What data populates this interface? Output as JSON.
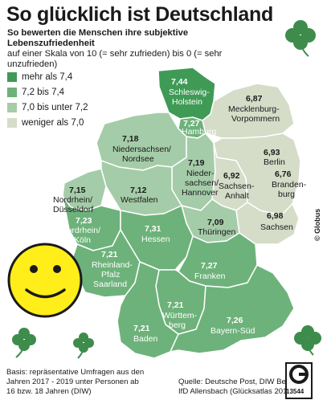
{
  "title": "So glücklich ist Deutschland",
  "subtitle_line1": "So bewerten die Menschen ihre subjektive Lebenszufriedenheit",
  "subtitle_line2": "auf einer Skala von 10 (= sehr zufrieden) bis 0 (= sehr unzufrieden)",
  "legend": [
    {
      "label": "mehr als 7,4",
      "color": "#3f9a55"
    },
    {
      "label": "7,2 bis 7,4",
      "color": "#6db27a"
    },
    {
      "label": "7,0 bis unter 7,2",
      "color": "#a5cca8"
    },
    {
      "label": "weniger als 7,0",
      "color": "#d5dcc8"
    }
  ],
  "regions": [
    {
      "value": "7,44",
      "name1": "Schleswig-",
      "name2": "Holstein",
      "category": 0
    },
    {
      "value": "7,27",
      "name1": "Hamburg",
      "name2": "",
      "category": 1
    },
    {
      "value": "6,87",
      "name1": "Mecklenburg-",
      "name2": "Vorpommern",
      "category": 3
    },
    {
      "value": "7,18",
      "name1": "Niedersachsen/",
      "name2": "Nordsee",
      "category": 2
    },
    {
      "value": "7,19",
      "name1": "Nieder-",
      "name2": "sachsen/",
      "name3": "Hannover",
      "category": 2
    },
    {
      "value": "6,93",
      "name1": "Berlin",
      "name2": "",
      "category": 3
    },
    {
      "value": "7,15",
      "name1": "Nordrhein/",
      "name2": "Düsseldorf",
      "category": 2
    },
    {
      "value": "7,12",
      "name1": "Westfalen",
      "name2": "",
      "category": 2
    },
    {
      "value": "6,92",
      "name1": "Sachsen-",
      "name2": "Anhalt",
      "category": 3
    },
    {
      "value": "6,76",
      "name1": "Branden-",
      "name2": "burg",
      "category": 3
    },
    {
      "value": "7,23",
      "name1": "Nordrhein/",
      "name2": "Köln",
      "category": 1
    },
    {
      "value": "7,09",
      "name1": "Thüringen",
      "name2": "",
      "category": 2
    },
    {
      "value": "6,98",
      "name1": "Sachsen",
      "name2": "",
      "category": 3
    },
    {
      "value": "7,31",
      "name1": "Hessen",
      "name2": "",
      "category": 1
    },
    {
      "value": "7,21",
      "name1": "Rheinland-",
      "name2": "Pfalz",
      "name3": "Saarland",
      "category": 1
    },
    {
      "value": "7,27",
      "name1": "Franken",
      "name2": "",
      "category": 1
    },
    {
      "value": "7,21",
      "name1": "Württem-",
      "name2": "berg",
      "category": 1
    },
    {
      "value": "7,21",
      "name1": "Baden",
      "name2": "",
      "category": 1
    },
    {
      "value": "7,26",
      "name1": "Bayern-Süd",
      "name2": "",
      "category": 1
    }
  ],
  "basis": [
    "Basis: repräsentative Umfragen aus den",
    "Jahren 2017 - 2019 unter Personen ab",
    "16 bzw. 18 Jahren (DIW)"
  ],
  "source": [
    "Quelle: Deutsche Post, DIW Berlin,",
    "IfD Allensbach (Glücksatlas 2019)"
  ],
  "credit": "© Globus",
  "graphic_number": "13544"
}
